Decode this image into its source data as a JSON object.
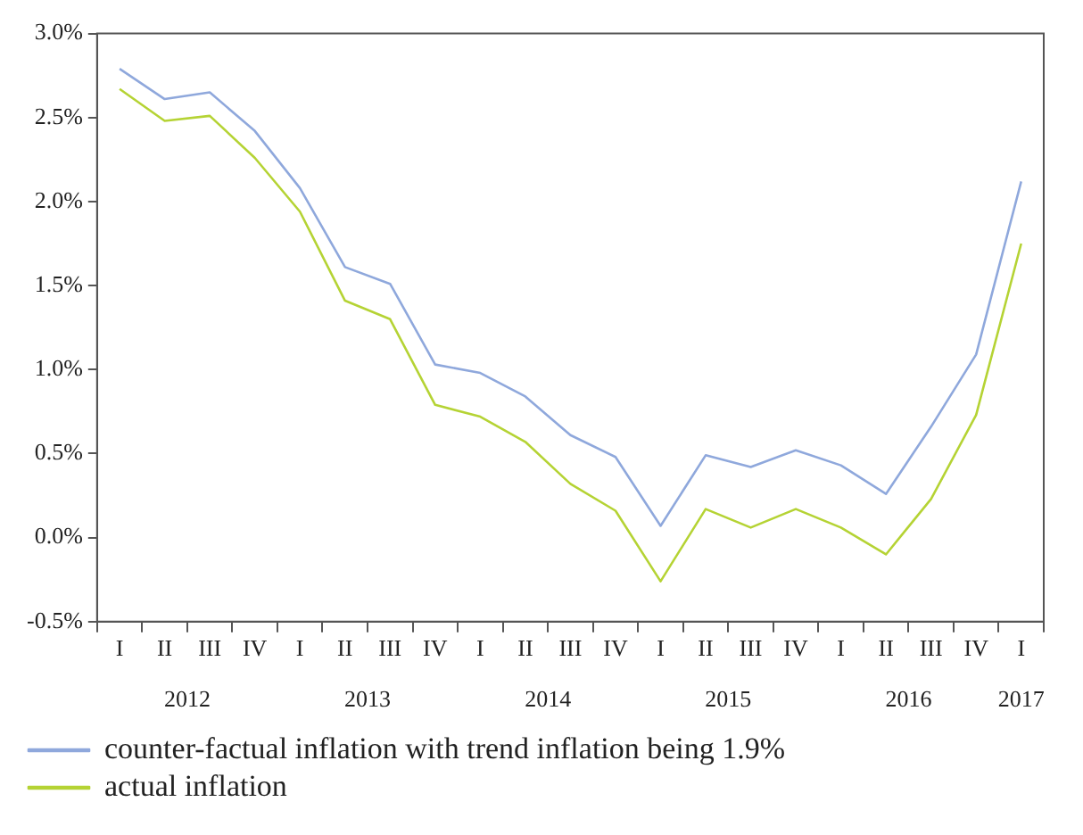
{
  "chart_data": {
    "type": "line",
    "categories": [
      "I",
      "II",
      "III",
      "IV",
      "I",
      "II",
      "III",
      "IV",
      "I",
      "II",
      "III",
      "IV",
      "I",
      "II",
      "III",
      "IV",
      "I",
      "II",
      "III",
      "IV",
      "I"
    ],
    "series": [
      {
        "name": "counter-factual inflation with trend inflation being 1.9%",
        "color": "#8fa8dc",
        "values": [
          2.79,
          2.61,
          2.65,
          2.42,
          2.08,
          1.61,
          1.51,
          1.03,
          0.98,
          0.84,
          0.61,
          0.48,
          0.07,
          0.49,
          0.42,
          0.52,
          0.43,
          0.26,
          0.66,
          1.09,
          2.12
        ]
      },
      {
        "name": "actual inflation",
        "color": "#b5d334",
        "values": [
          2.67,
          2.48,
          2.51,
          2.26,
          1.94,
          1.41,
          1.3,
          0.79,
          0.72,
          0.57,
          0.32,
          0.16,
          -0.26,
          0.17,
          0.06,
          0.17,
          0.06,
          -0.1,
          0.23,
          0.73,
          1.75
        ]
      }
    ],
    "ylim": [
      -0.5,
      3.0
    ],
    "yticks": [
      {
        "value": -0.5,
        "label": "-0.5%"
      },
      {
        "value": 0,
        "label": "0.0%"
      },
      {
        "value": 0.5,
        "label": "0.5%"
      },
      {
        "value": 1,
        "label": "1.0%"
      },
      {
        "value": 1.5,
        "label": "1.5%"
      },
      {
        "value": 2,
        "label": "2.0%"
      },
      {
        "value": 2.5,
        "label": "2.5%"
      },
      {
        "value": 3,
        "label": "3.0%"
      }
    ],
    "annotations": [
      "2012",
      "2013",
      "2014",
      "2015",
      "2016",
      "2017"
    ],
    "grid": false,
    "legend": "bottom",
    "marker": "none",
    "line_style": "solid"
  }
}
